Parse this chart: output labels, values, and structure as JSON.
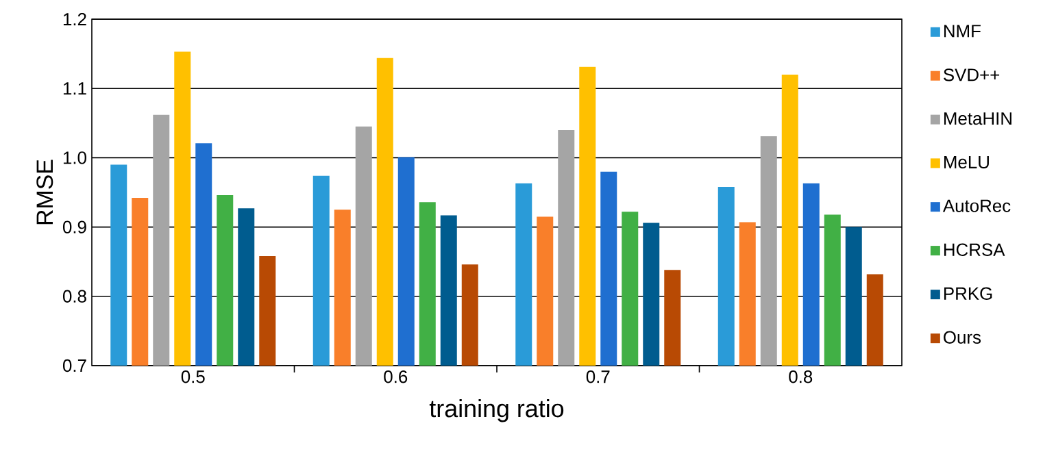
{
  "chart_data": {
    "type": "bar",
    "xlabel": "training ratio",
    "ylabel": "RMSE",
    "categories": [
      "0.5",
      "0.6",
      "0.7",
      "0.8"
    ],
    "series": [
      {
        "name": "NMF",
        "color": "#2a9bd8",
        "values": [
          0.99,
          0.974,
          0.963,
          0.958
        ]
      },
      {
        "name": "SVD++",
        "color": "#f97f2a",
        "values": [
          0.942,
          0.925,
          0.915,
          0.907
        ]
      },
      {
        "name": "MetaHIN",
        "color": "#a5a5a5",
        "values": [
          1.062,
          1.045,
          1.04,
          1.031
        ]
      },
      {
        "name": "MeLU",
        "color": "#ffc000",
        "values": [
          1.153,
          1.144,
          1.131,
          1.12
        ]
      },
      {
        "name": "AutoRec",
        "color": "#1f6fd0",
        "values": [
          1.021,
          1.001,
          0.98,
          0.963
        ]
      },
      {
        "name": "HCRSA",
        "color": "#41b045",
        "values": [
          0.946,
          0.936,
          0.922,
          0.918
        ]
      },
      {
        "name": "PRKG",
        "color": "#005c8f",
        "values": [
          0.927,
          0.917,
          0.906,
          0.9
        ]
      },
      {
        "name": "Ours",
        "color": "#b84a04",
        "values": [
          0.858,
          0.846,
          0.838,
          0.832
        ]
      }
    ],
    "ylim": [
      0.7,
      1.2
    ],
    "yticks": [
      0.7,
      0.8,
      0.9,
      {
        "value": 1.0,
        "label": "1.0"
      },
      1.1,
      1.2
    ],
    "grid": "y",
    "legend": "right"
  }
}
